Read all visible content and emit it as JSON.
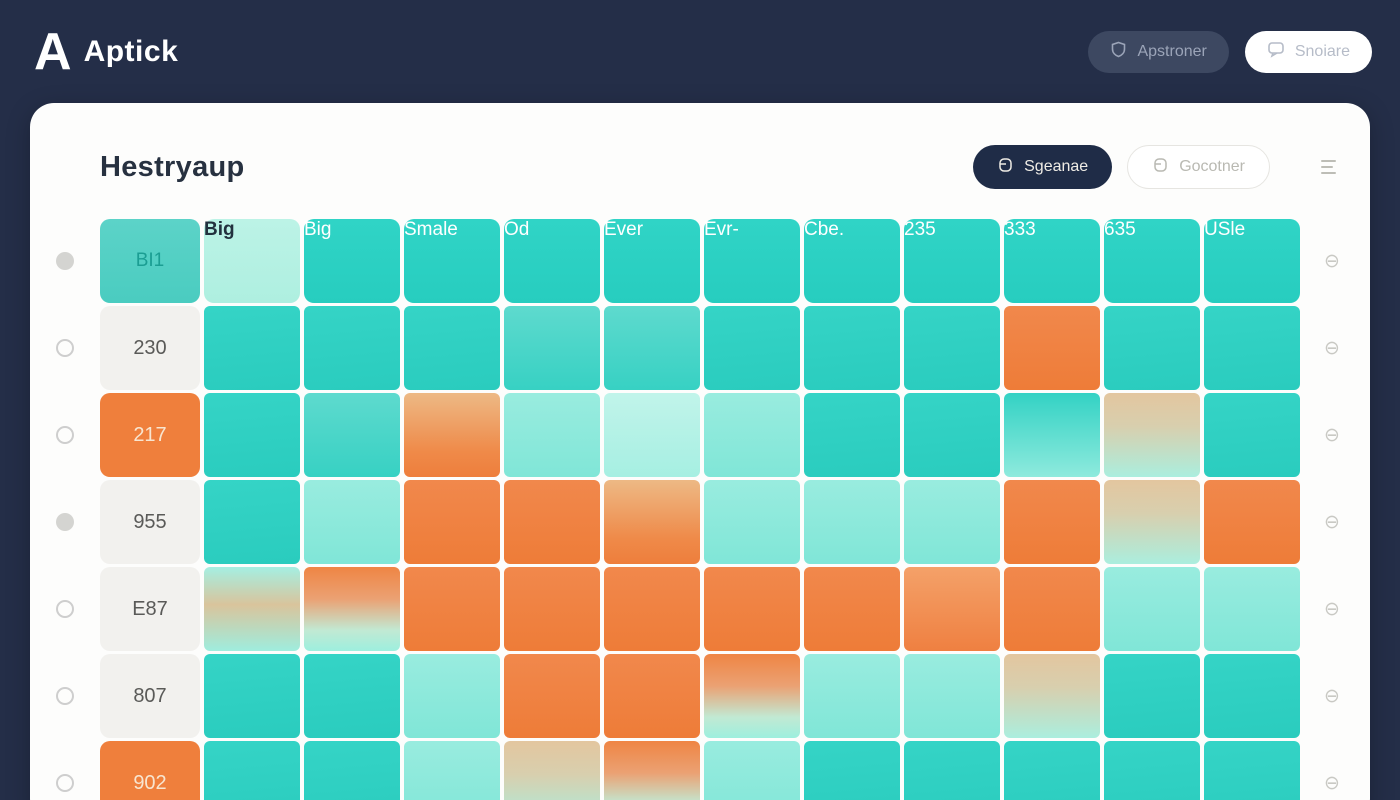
{
  "header_bar": {
    "logo_mark": "A",
    "brand": "Aptick",
    "buttons": [
      {
        "label": "Apstroner",
        "icon": "badge-icon"
      },
      {
        "label": "Snoiare",
        "icon": "chat-icon"
      }
    ]
  },
  "card": {
    "title": "Hestryaup",
    "actions": [
      {
        "label": "Sgeanae",
        "style": "dark",
        "icon": "mug-icon"
      },
      {
        "label": "Gocotner",
        "style": "outline",
        "icon": "mug-icon"
      }
    ],
    "menu_icon": "hamburger-icon"
  },
  "chart_data": {
    "type": "heatmap",
    "title": "Hestryaup",
    "corner_label": "BI1",
    "columns": [
      "Big",
      "Big",
      "Smale",
      "Od",
      "Ever",
      "Evr-",
      "Cbe.",
      "235",
      "333",
      "635",
      "USle"
    ],
    "column_variants": [
      "mint",
      "teal",
      "teal",
      "teal",
      "teal",
      "teal",
      "teal",
      "teal",
      "teal",
      "teal",
      "teal"
    ],
    "cell_scale": {
      "t": "teal-high",
      "t2": "teal-medium",
      "m": "mint-low",
      "m2": "mint-lowest",
      "o": "orange-hot",
      "os": "orange-soft",
      "to": "tan-to-orange",
      "om": "orange-to-mint",
      "tm": "tan-to-mint",
      "mt": "mint-tan-mint",
      "tml": "teal-to-mint"
    },
    "rows": [
      {
        "label": "230",
        "label_variant": "gray",
        "radio": "off",
        "cells": [
          "t",
          "t",
          "t",
          "t2",
          "t2",
          "t",
          "t",
          "t",
          "o",
          "t",
          "t"
        ]
      },
      {
        "label": "217",
        "label_variant": "orange",
        "radio": "off",
        "cells": [
          "t",
          "t2",
          "to",
          "m",
          "m2",
          "m",
          "t",
          "t",
          "tml",
          "tm",
          "t"
        ]
      },
      {
        "label": "955",
        "label_variant": "gray",
        "radio": "on",
        "cells": [
          "t",
          "m",
          "o",
          "o",
          "to",
          "m",
          "m",
          "m",
          "o",
          "tm",
          "o"
        ]
      },
      {
        "label": "E87",
        "label_variant": "gray",
        "radio": "off",
        "cells": [
          "mt",
          "om",
          "o",
          "o",
          "o",
          "o",
          "o",
          "os",
          "o",
          "m",
          "m"
        ]
      },
      {
        "label": "807",
        "label_variant": "gray",
        "radio": "off",
        "cells": [
          "t",
          "t",
          "m",
          "o",
          "o",
          "om",
          "m",
          "m",
          "tm",
          "t",
          "t"
        ]
      },
      {
        "label": "902",
        "label_variant": "orange",
        "radio": "off",
        "cells": [
          "t",
          "t",
          "m",
          "tm",
          "om",
          "m",
          "t",
          "t",
          "t",
          "t",
          "t"
        ]
      }
    ],
    "header_radio": "on",
    "row_icon": "circle-minus-icon",
    "colors": {
      "teal": "#2ed2c4",
      "mint": "#99ecdf",
      "orange": "#ef7f3c",
      "tan": "#e3c69f",
      "navy": "#242e48",
      "dark_button": "#1f2c47",
      "label_gray": "#f2f1ee"
    }
  }
}
